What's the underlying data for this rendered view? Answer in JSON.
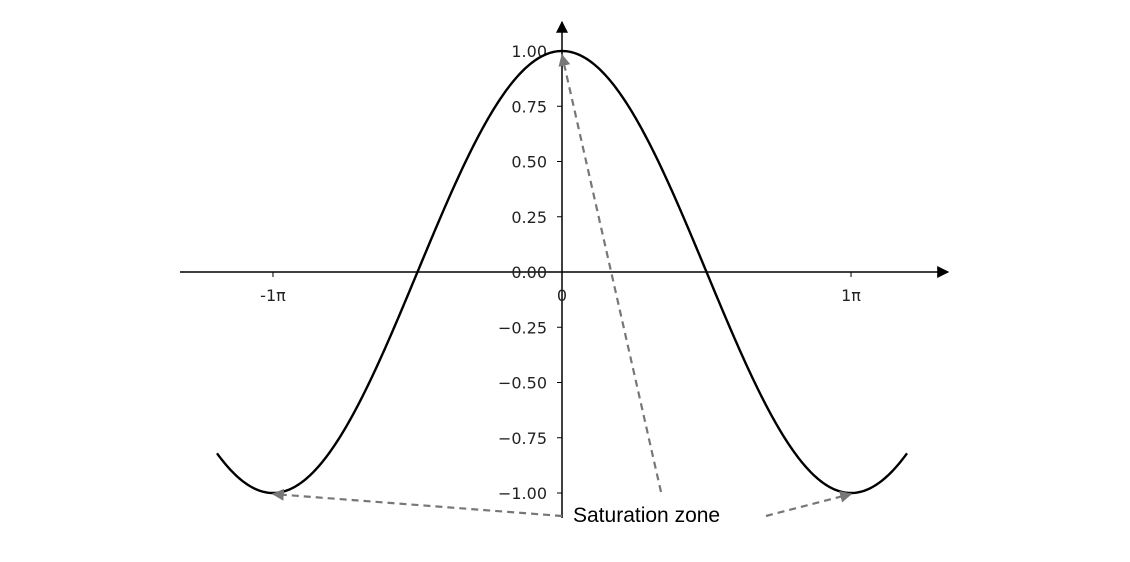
{
  "chart_data": {
    "type": "line",
    "title": "",
    "xlabel": "",
    "ylabel": "",
    "xlim": [
      -4.1,
      4.05
    ],
    "ylim": [
      -1.0,
      1.0
    ],
    "grid": false,
    "x_ticks": [
      {
        "value": -3.14159,
        "label": "-1π"
      },
      {
        "value": 0,
        "label": "0"
      },
      {
        "value": 3.14159,
        "label": "1π"
      }
    ],
    "y_ticks": [
      {
        "value": 1.0,
        "label": "1.00"
      },
      {
        "value": 0.75,
        "label": "0.75"
      },
      {
        "value": 0.5,
        "label": "0.50"
      },
      {
        "value": 0.25,
        "label": "0.25"
      },
      {
        "value": 0.0,
        "label": "0.00"
      },
      {
        "value": -0.25,
        "label": "−0.25"
      },
      {
        "value": -0.5,
        "label": "−0.50"
      },
      {
        "value": -0.75,
        "label": "−0.75"
      },
      {
        "value": -1.0,
        "label": "−1.00"
      }
    ],
    "series": [
      {
        "function": "cos(x)",
        "x_range": [
          -3.75,
          3.75
        ],
        "color": "#000000"
      }
    ],
    "annotation": {
      "text": "Saturation zone",
      "color": "#777777",
      "targets": [
        {
          "x": -3.14159,
          "y": -1.0
        },
        {
          "x": 0.0,
          "y": 1.0
        },
        {
          "x": 3.14159,
          "y": -1.0
        }
      ]
    }
  }
}
